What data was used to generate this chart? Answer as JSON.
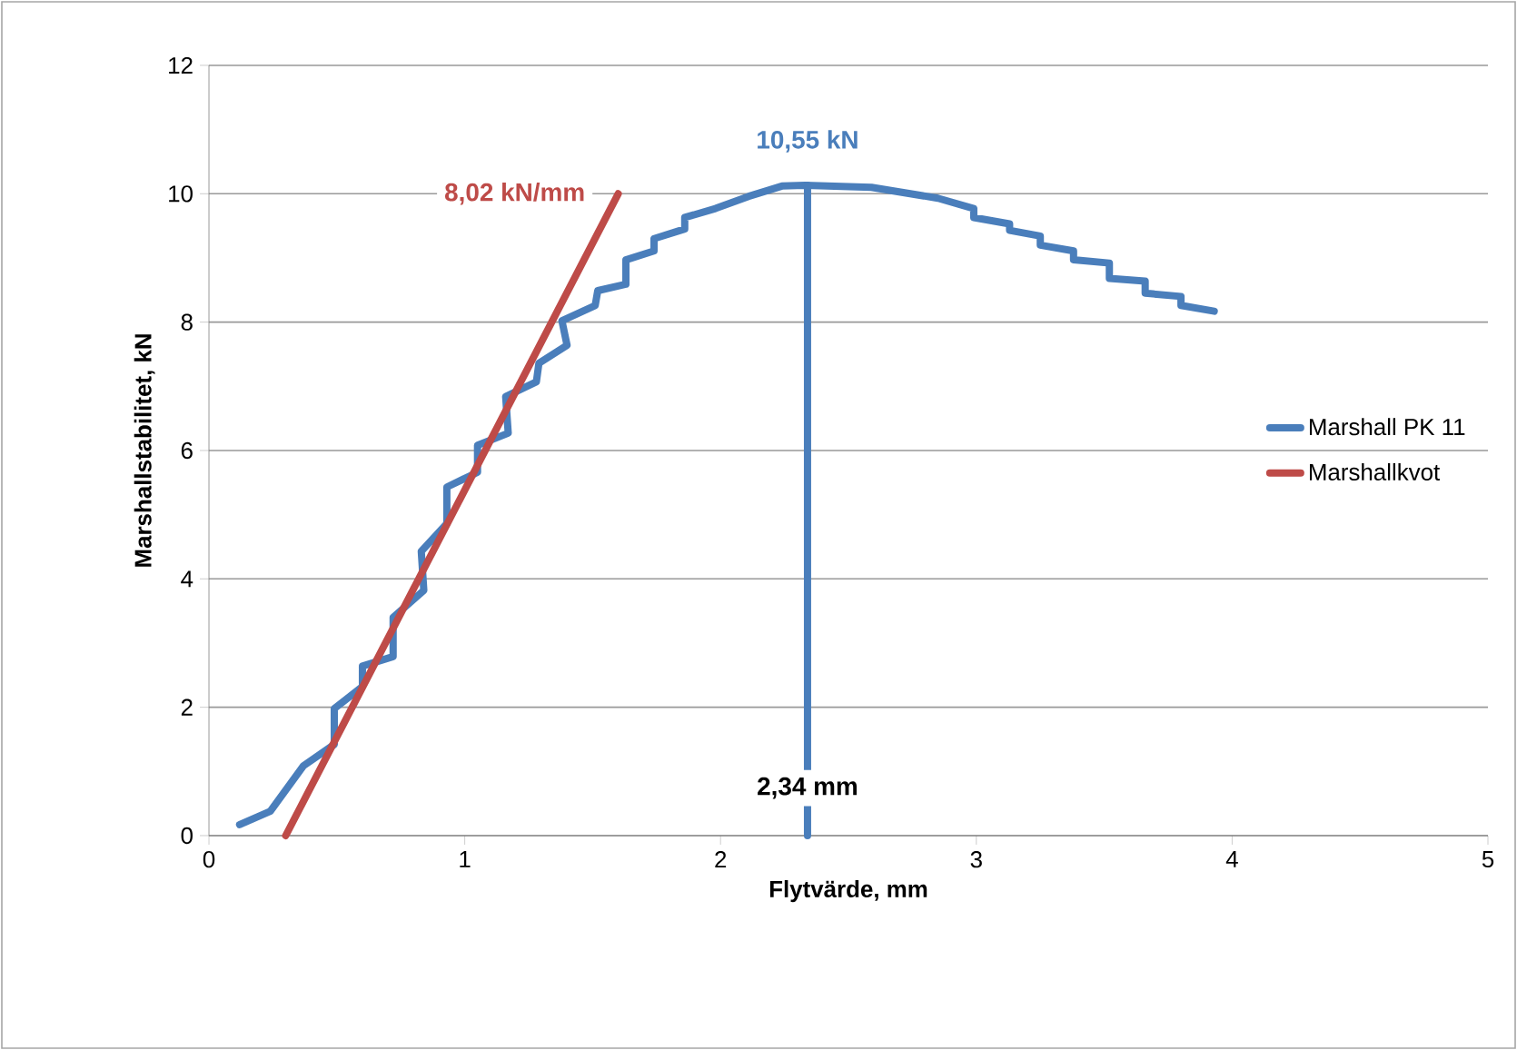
{
  "chart_data": {
    "type": "line",
    "xlabel": "Flytvärde, mm",
    "ylabel": "Marshallstabilitet, kN",
    "xlim": [
      0,
      5
    ],
    "ylim": [
      0,
      12
    ],
    "xticks": [
      0,
      1,
      2,
      3,
      4,
      5
    ],
    "yticks": [
      0,
      2,
      4,
      6,
      8,
      10,
      12
    ],
    "grid": "y",
    "legend": "right",
    "line_style": "solid",
    "series": [
      {
        "name": "Marshall PK 11",
        "color": "#4a7ebb",
        "x": [
          0.12,
          0.24,
          0.37,
          0.49,
          0.49,
          0.6,
          0.6,
          0.72,
          0.72,
          0.84,
          0.83,
          0.93,
          0.93,
          1.05,
          1.05,
          1.17,
          1.16,
          1.28,
          1.29,
          1.4,
          1.38,
          1.51,
          1.52,
          1.63,
          1.63,
          1.74,
          1.74,
          1.86,
          1.86,
          1.98,
          2.11,
          2.24,
          2.33,
          2.59,
          2.85,
          2.99,
          2.99,
          3.13,
          3.13,
          3.25,
          3.25,
          3.38,
          3.38,
          3.52,
          3.52,
          3.66,
          3.66,
          3.8,
          3.8,
          3.93
        ],
        "values": [
          0.17,
          0.38,
          1.09,
          1.42,
          1.98,
          2.32,
          2.64,
          2.79,
          3.4,
          3.82,
          4.43,
          4.86,
          5.43,
          5.66,
          6.08,
          6.27,
          6.84,
          7.07,
          7.36,
          7.64,
          8.02,
          8.26,
          8.49,
          8.59,
          8.97,
          9.11,
          9.3,
          9.45,
          9.63,
          9.77,
          9.96,
          10.12,
          10.13,
          10.1,
          9.93,
          9.77,
          9.63,
          9.53,
          9.43,
          9.34,
          9.2,
          9.11,
          8.97,
          8.92,
          8.68,
          8.64,
          8.45,
          8.4,
          8.26,
          8.17
        ]
      },
      {
        "name": "Marshallkvot",
        "color": "#be4b48",
        "x": [
          0.3,
          1.6
        ],
        "values": [
          0,
          10.0
        ]
      },
      {
        "color": "#4a7ebb",
        "x": [
          2.34,
          2.34
        ],
        "values": [
          0,
          10.13
        ]
      }
    ],
    "annotations": [
      "10,55 kN",
      "8,02 kN/mm",
      "2,34  mm"
    ]
  }
}
